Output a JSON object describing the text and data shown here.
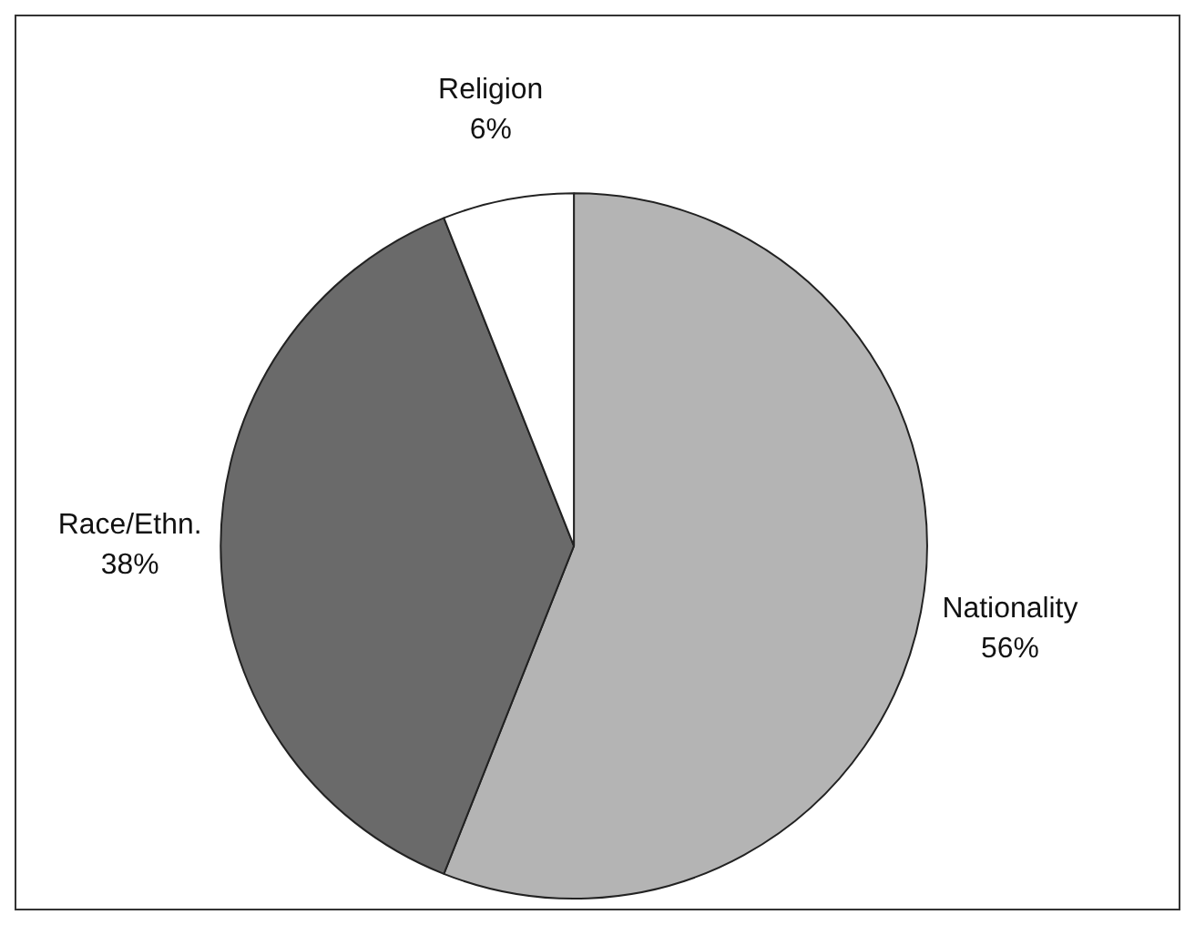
{
  "chart_data": {
    "type": "pie",
    "categories": [
      "Nationality",
      "Race/Ethn.",
      "Religion"
    ],
    "values": [
      56,
      38,
      6
    ],
    "colors": [
      "#b4b4b4",
      "#6a6a6a",
      "#ffffff"
    ],
    "value_labels": [
      "56%",
      "38%",
      "6%"
    ],
    "legend": false
  }
}
